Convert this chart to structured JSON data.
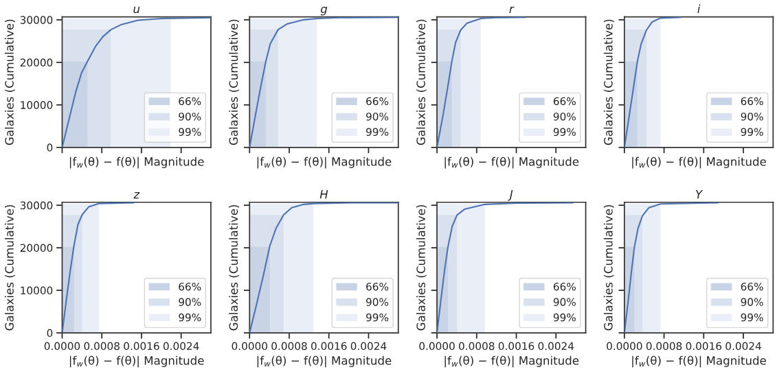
{
  "chart_data": [
    {
      "type": "line",
      "title": "u",
      "xlabel": "|f$_{w}$(θ) − f(θ)| Magnitude",
      "ylabel": "Galaxies (Cumulative)",
      "xlim": [
        0,
        0.003
      ],
      "ylim": [
        0,
        30700
      ],
      "xticks": [
        {
          "value": 0,
          "label": null
        },
        {
          "value": 0.0008,
          "label": null
        },
        {
          "value": 0.0016,
          "label": null
        },
        {
          "value": 0.0024,
          "label": null
        }
      ],
      "yticks": [
        0,
        10000,
        20000,
        30000
      ],
      "tick_labels": "y",
      "legend": "bottom right",
      "grid": false,
      "series": [
        {
          "color": "#4c72b0",
          "x": [
            0,
            0.000271,
            0.00039,
            0.000514,
            0.000676,
            0.000819,
            0.000986,
            0.0012,
            0.00153,
            0.00201,
            0.003
          ],
          "values": [
            0,
            12900,
            17500,
            20300,
            23800,
            26000,
            27700,
            28900,
            29900,
            30300,
            30500
          ]
        },
        {
          "type": "area",
          "name": "66%",
          "color": "#c9d3e6",
          "x": [
            0,
            0.00051
          ],
          "values": [
            20200,
            20200
          ]
        },
        {
          "type": "area",
          "name": "90%",
          "color": "#dae1ee",
          "x": [
            0,
            0.00098
          ],
          "values": [
            27700,
            27700
          ]
        },
        {
          "type": "area",
          "name": "99%",
          "color": "#eaeef6",
          "x": [
            0,
            0.00219
          ],
          "values": [
            30300,
            30300
          ]
        }
      ]
    },
    {
      "type": "line",
      "title": "g",
      "xlabel": "|f$_{w}$(θ) − f(θ)| Magnitude",
      "ylabel": "Galaxies (Cumulative)",
      "xlim": [
        0,
        0.003
      ],
      "ylim": [
        0,
        30700
      ],
      "xticks": [
        {
          "value": 0,
          "label": null
        },
        {
          "value": 0.0008,
          "label": null
        },
        {
          "value": 0.0016,
          "label": null
        },
        {
          "value": 0.0024,
          "label": null
        }
      ],
      "yticks": [
        0,
        10000,
        20000,
        30000
      ],
      "tick_labels": false,
      "legend": "bottom right",
      "grid": false,
      "series": [
        {
          "color": "#4c72b0",
          "x": [
            0,
            0.000133,
            0.000229,
            0.000329,
            0.000419,
            0.000576,
            0.000752,
            0.00109,
            0.00136,
            0.0018,
            0.003
          ],
          "values": [
            0,
            8500,
            14500,
            20300,
            24400,
            27700,
            29000,
            30000,
            30300,
            30500,
            30600
          ]
        },
        {
          "type": "area",
          "name": "66%",
          "color": "#c9d3e6",
          "x": [
            0,
            0.000329
          ],
          "values": [
            20200,
            20200
          ]
        },
        {
          "type": "area",
          "name": "90%",
          "color": "#dae1ee",
          "x": [
            0,
            0.000576
          ],
          "values": [
            27700,
            27700
          ]
        },
        {
          "type": "area",
          "name": "99%",
          "color": "#eaeef6",
          "x": [
            0,
            0.00136
          ],
          "values": [
            30300,
            30300
          ]
        }
      ]
    },
    {
      "type": "line",
      "title": "r",
      "xlabel": "|f$_{w}$(θ) − f(θ)| Magnitude",
      "ylabel": "Galaxies (Cumulative)",
      "xlim": [
        0,
        0.003
      ],
      "ylim": [
        0,
        30700
      ],
      "xticks": [
        {
          "value": 0,
          "label": null
        },
        {
          "value": 0.0008,
          "label": null
        },
        {
          "value": 0.0016,
          "label": null
        },
        {
          "value": 0.0024,
          "label": null
        }
      ],
      "yticks": [
        0,
        10000,
        20000,
        30000
      ],
      "tick_labels": false,
      "legend": "bottom right",
      "grid": false,
      "series": [
        {
          "color": "#4c72b0",
          "x": [
            0,
            0.000124,
            0.000216,
            0.000299,
            0.000377,
            0.000478,
            0.000607,
            0.000883,
            0.00116,
            0.00178
          ],
          "values": [
            0,
            7700,
            14100,
            20200,
            24700,
            27600,
            29200,
            30300,
            30500,
            30600
          ]
        },
        {
          "type": "area",
          "name": "66%",
          "color": "#c9d3e6",
          "x": [
            0,
            0.000299
          ],
          "values": [
            20200,
            20200
          ]
        },
        {
          "type": "area",
          "name": "90%",
          "color": "#dae1ee",
          "x": [
            0,
            0.000478
          ],
          "values": [
            27700,
            27700
          ]
        },
        {
          "type": "area",
          "name": "99%",
          "color": "#eaeef6",
          "x": [
            0,
            0.000883
          ],
          "values": [
            30300,
            30300
          ]
        }
      ]
    },
    {
      "type": "line",
      "title": "i",
      "xlabel": "|f$_{w}$(θ) − f(θ)| Magnitude",
      "ylabel": "Galaxies (Cumulative)",
      "xlim": [
        0,
        0.003
      ],
      "ylim": [
        0,
        30700
      ],
      "xticks": [
        {
          "value": 0,
          "label": null
        },
        {
          "value": 0.0008,
          "label": null
        },
        {
          "value": 0.0016,
          "label": null
        },
        {
          "value": 0.0024,
          "label": null
        }
      ],
      "yticks": [
        0,
        10000,
        20000,
        30000
      ],
      "tick_labels": false,
      "legend": "bottom right",
      "grid": false,
      "series": [
        {
          "color": "#4c72b0",
          "x": [
            0,
            0.000101,
            0.000184,
            0.000262,
            0.00034,
            0.000446,
            0.000561,
            0.000726,
            0.00114
          ],
          "values": [
            0,
            7700,
            14100,
            20200,
            24400,
            27600,
            29500,
            30400,
            30600
          ]
        },
        {
          "type": "area",
          "name": "66%",
          "color": "#c9d3e6",
          "x": [
            0,
            0.000262
          ],
          "values": [
            20200,
            20200
          ]
        },
        {
          "type": "area",
          "name": "90%",
          "color": "#dae1ee",
          "x": [
            0,
            0.000446
          ],
          "values": [
            27700,
            27700
          ]
        },
        {
          "type": "area",
          "name": "99%",
          "color": "#eaeef6",
          "x": [
            0,
            0.000726
          ],
          "values": [
            30300,
            30300
          ]
        }
      ]
    },
    {
      "type": "line",
      "title": "z",
      "xlabel": "|f$_{w}$(θ) − f(θ)| Magnitude",
      "ylabel": "Galaxies (Cumulative)",
      "xlim": [
        0,
        0.003
      ],
      "ylim": [
        0,
        30700
      ],
      "xticks": [
        {
          "value": 0,
          "label": "0.0000"
        },
        {
          "value": 0.0008,
          "label": "0.0008"
        },
        {
          "value": 0.0016,
          "label": "0.0016"
        },
        {
          "value": 0.0024,
          "label": "0.0024"
        }
      ],
      "yticks": [
        0,
        10000,
        20000,
        30000
      ],
      "legend": "bottom right",
      "grid": false,
      "series": [
        {
          "color": "#4c72b0",
          "x": [
            0,
            8.1e-05,
            0.000162,
            0.000238,
            0.000319,
            0.000405,
            0.000533,
            0.000743,
            0.00144
          ],
          "values": [
            0,
            7400,
            14500,
            20500,
            25500,
            27800,
            29600,
            30400,
            30600
          ]
        },
        {
          "type": "area",
          "name": "66%",
          "color": "#c9d3e6",
          "x": [
            0,
            0.000238
          ],
          "values": [
            20200,
            20200
          ]
        },
        {
          "type": "area",
          "name": "90%",
          "color": "#dae1ee",
          "x": [
            0,
            0.000405
          ],
          "values": [
            27700,
            27700
          ]
        },
        {
          "type": "area",
          "name": "99%",
          "color": "#eaeef6",
          "x": [
            0,
            0.000743
          ],
          "values": [
            30300,
            30300
          ]
        }
      ]
    },
    {
      "type": "line",
      "title": "H",
      "xlabel": "|f$_{w}$(θ) − f(θ)| Magnitude",
      "ylabel": "Galaxies (Cumulative)",
      "xlim": [
        0,
        0.003
      ],
      "ylim": [
        0,
        30700
      ],
      "xticks": [
        {
          "value": 0,
          "label": "0.0000"
        },
        {
          "value": 0.0008,
          "label": "0.0008"
        },
        {
          "value": 0.0016,
          "label": "0.0016"
        },
        {
          "value": 0.0024,
          "label": "0.0024"
        }
      ],
      "yticks": [
        0,
        10000,
        20000,
        30000
      ],
      "tick_labels": "x",
      "legend": "bottom right",
      "grid": false,
      "series": [
        {
          "color": "#4c72b0",
          "x": [
            0,
            0.000133,
            0.000276,
            0.00041,
            0.000538,
            0.000686,
            0.000848,
            0.00109,
            0.00129,
            0.00204,
            0.003
          ],
          "values": [
            0,
            6300,
            13400,
            20500,
            24700,
            27700,
            29400,
            30200,
            30400,
            30600,
            30600
          ]
        },
        {
          "type": "area",
          "name": "66%",
          "color": "#c9d3e6",
          "x": [
            0,
            0.00041
          ],
          "values": [
            20200,
            20200
          ]
        },
        {
          "type": "area",
          "name": "90%",
          "color": "#dae1ee",
          "x": [
            0,
            0.000686
          ],
          "values": [
            27700,
            27700
          ]
        },
        {
          "type": "area",
          "name": "99%",
          "color": "#eaeef6",
          "x": [
            0,
            0.00129
          ],
          "values": [
            30300,
            30300
          ]
        }
      ]
    },
    {
      "type": "line",
      "title": "J",
      "xlabel": "|f$_{w}$(θ) − f(θ)| Magnitude",
      "ylabel": "Galaxies (Cumulative)",
      "xlim": [
        0,
        0.003
      ],
      "ylim": [
        0,
        30700
      ],
      "xticks": [
        {
          "value": 0,
          "label": "0.0000"
        },
        {
          "value": 0.0008,
          "label": "0.0008"
        },
        {
          "value": 0.0016,
          "label": "0.0016"
        },
        {
          "value": 0.0024,
          "label": "0.0024"
        }
      ],
      "yticks": [
        0,
        10000,
        20000,
        30000
      ],
      "tick_labels": "x",
      "legend": "bottom right",
      "grid": false,
      "series": [
        {
          "color": "#4c72b0",
          "x": [
            0,
            7.8e-05,
            0.000156,
            0.000221,
            0.000308,
            0.000405,
            0.000561,
            0.000966,
            0.00162,
            0.00274
          ],
          "values": [
            0,
            7600,
            15000,
            20200,
            25100,
            27700,
            29100,
            30200,
            30500,
            30600
          ]
        },
        {
          "type": "area",
          "name": "66%",
          "color": "#c9d3e6",
          "x": [
            0,
            0.000221
          ],
          "values": [
            20200,
            20200
          ]
        },
        {
          "type": "area",
          "name": "90%",
          "color": "#dae1ee",
          "x": [
            0,
            0.000405
          ],
          "values": [
            27700,
            27700
          ]
        },
        {
          "type": "area",
          "name": "99%",
          "color": "#eaeef6",
          "x": [
            0,
            0.000966
          ],
          "values": [
            30300,
            30300
          ]
        }
      ]
    },
    {
      "type": "line",
      "title": "Y",
      "xlabel": "|f$_{w}$(θ) − f(θ)| Magnitude",
      "ylabel": "Galaxies (Cumulative)",
      "xlim": [
        0,
        0.003
      ],
      "ylim": [
        0,
        30700
      ],
      "xticks": [
        {
          "value": 0,
          "label": "0.0000"
        },
        {
          "value": 0.0008,
          "label": "0.0008"
        },
        {
          "value": 0.0016,
          "label": "0.0016"
        },
        {
          "value": 0.0024,
          "label": "0.0024"
        }
      ],
      "yticks": [
        0,
        10000,
        20000,
        30000
      ],
      "tick_labels": "x",
      "legend": "bottom right",
      "grid": false,
      "series": [
        {
          "color": "#4c72b0",
          "x": [
            0,
            7.8e-05,
            0.000138,
            0.000202,
            0.000276,
            0.000363,
            0.000492,
            0.000726,
            0.00189
          ],
          "values": [
            0,
            7600,
            14000,
            20200,
            24600,
            27500,
            29400,
            30300,
            30600
          ]
        },
        {
          "type": "area",
          "name": "66%",
          "color": "#c9d3e6",
          "x": [
            0,
            0.000202
          ],
          "values": [
            20200,
            20200
          ]
        },
        {
          "type": "area",
          "name": "90%",
          "color": "#dae1ee",
          "x": [
            0,
            0.000363
          ],
          "values": [
            27700,
            27700
          ]
        },
        {
          "type": "area",
          "name": "99%",
          "color": "#eaeef6",
          "x": [
            0,
            0.000726
          ],
          "values": [
            30300,
            30300
          ]
        }
      ]
    }
  ]
}
